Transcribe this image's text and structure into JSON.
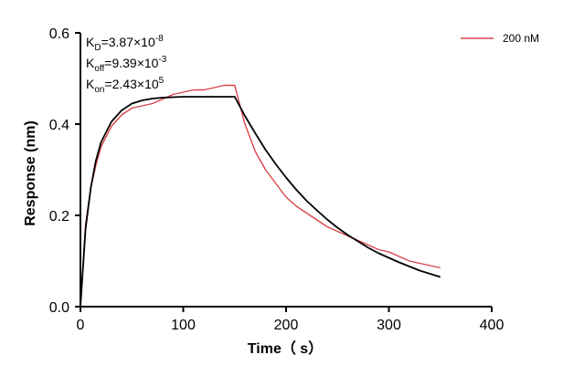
{
  "chart_data": {
    "type": "line",
    "title": "",
    "xlabel": "Time（ s）",
    "ylabel": "Response (nm)",
    "xlim": [
      0,
      400
    ],
    "ylim": [
      0,
      0.6
    ],
    "x_ticks": [
      "0",
      "100",
      "200",
      "300",
      "400"
    ],
    "y_ticks": [
      "0.0",
      "0.2",
      "0.4",
      "0.6"
    ],
    "grid": false,
    "legend_position": "top-right",
    "annotations": [
      {
        "base": "K",
        "sub": "D",
        "eq": "=3.87×10",
        "sup": "-8"
      },
      {
        "base": "K",
        "sub": "off",
        "eq": "=9.39×10",
        "sup": "-3"
      },
      {
        "base": "K",
        "sub": "on",
        "eq": "=2.43×10",
        "sup": "5"
      }
    ],
    "series": [
      {
        "name": "200 nM",
        "color": "#d9444a",
        "x": [
          0,
          5,
          10,
          15,
          20,
          30,
          40,
          50,
          60,
          70,
          80,
          90,
          100,
          110,
          120,
          130,
          140,
          150,
          160,
          170,
          180,
          190,
          200,
          210,
          220,
          230,
          240,
          250,
          260,
          270,
          280,
          290,
          300,
          310,
          320,
          330,
          340,
          350
        ],
        "y": [
          0.0,
          0.18,
          0.26,
          0.31,
          0.35,
          0.395,
          0.42,
          0.435,
          0.44,
          0.445,
          0.455,
          0.465,
          0.47,
          0.475,
          0.475,
          0.48,
          0.485,
          0.485,
          0.4,
          0.34,
          0.3,
          0.27,
          0.24,
          0.22,
          0.205,
          0.19,
          0.175,
          0.165,
          0.155,
          0.145,
          0.135,
          0.125,
          0.12,
          0.11,
          0.1,
          0.095,
          0.09,
          0.085
        ]
      },
      {
        "name": "",
        "color": "#000000",
        "x": [
          0,
          5,
          10,
          15,
          20,
          30,
          40,
          50,
          60,
          70,
          80,
          90,
          100,
          110,
          120,
          130,
          140,
          150,
          160,
          170,
          180,
          190,
          200,
          210,
          220,
          230,
          240,
          250,
          260,
          270,
          280,
          290,
          300,
          310,
          320,
          330,
          340,
          350
        ],
        "y": [
          0.0,
          0.17,
          0.26,
          0.32,
          0.36,
          0.405,
          0.43,
          0.445,
          0.452,
          0.456,
          0.458,
          0.459,
          0.46,
          0.46,
          0.46,
          0.46,
          0.46,
          0.46,
          0.418,
          0.38,
          0.344,
          0.312,
          0.283,
          0.256,
          0.232,
          0.211,
          0.191,
          0.173,
          0.157,
          0.143,
          0.129,
          0.117,
          0.107,
          0.097,
          0.088,
          0.079,
          0.072,
          0.065
        ]
      }
    ]
  }
}
